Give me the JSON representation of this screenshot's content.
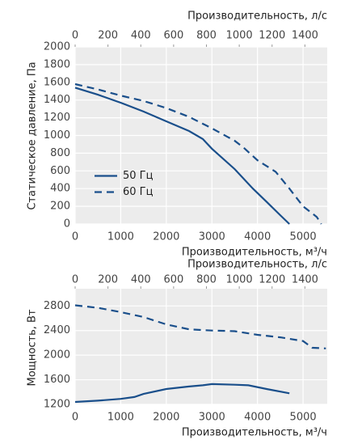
{
  "chart_data": [
    {
      "type": "line",
      "xlabel": "Производительность, м³/ч",
      "x2label": "Производительность, л/с",
      "ylabel": "Статическое давление, Па",
      "xlim": [
        0,
        5530
      ],
      "xticks": [
        0,
        1000,
        2000,
        3000,
        4000,
        5000
      ],
      "x2lim": [
        0,
        1536
      ],
      "x2ticks": [
        0,
        200,
        400,
        600,
        800,
        1000,
        1200,
        1400
      ],
      "ylim": [
        0,
        2000
      ],
      "yticks": [
        0,
        200,
        400,
        600,
        800,
        1000,
        1200,
        1400,
        1600,
        1800,
        2000
      ],
      "grid": true,
      "legend": "center left",
      "series": [
        {
          "name": "50 Гц",
          "color": "#1a4f8b",
          "linestyle": "solid",
          "x": [
            0,
            500,
            1000,
            1500,
            2000,
            2500,
            2800,
            3000,
            3500,
            3900,
            4200,
            4500,
            4700
          ],
          "values": [
            1540,
            1460,
            1370,
            1270,
            1160,
            1050,
            960,
            850,
            620,
            400,
            250,
            100,
            0
          ]
        },
        {
          "name": "60 Гц",
          "color": "#1a4f8b",
          "linestyle": "dashed",
          "x": [
            0,
            500,
            1000,
            1500,
            2000,
            2500,
            3000,
            3500,
            3700,
            4000,
            4400,
            4700,
            5000,
            5300,
            5400
          ],
          "values": [
            1580,
            1520,
            1450,
            1390,
            1310,
            1210,
            1080,
            940,
            860,
            720,
            590,
            400,
            200,
            80,
            0
          ]
        }
      ]
    },
    {
      "type": "line",
      "xlabel": "Производительность, м³/ч",
      "x2label": "Производительность, л/с",
      "ylabel": "Мощность, Вт",
      "xlim": [
        0,
        5530
      ],
      "xticks": [
        0,
        1000,
        2000,
        3000,
        4000,
        5000
      ],
      "x2lim": [
        0,
        1536
      ],
      "x2ticks": [
        0,
        200,
        400,
        600,
        800,
        1000,
        1200,
        1400
      ],
      "ylim": [
        1200,
        3080
      ],
      "yticks": [
        1200,
        1600,
        2000,
        2400,
        2800
      ],
      "grid": true,
      "series": [
        {
          "name": "50 Гц",
          "color": "#1a4f8b",
          "linestyle": "solid",
          "x": [
            0,
            500,
            1000,
            1300,
            1500,
            2000,
            2500,
            2800,
            3000,
            3500,
            3800,
            4200,
            4700
          ],
          "values": [
            1240,
            1260,
            1290,
            1320,
            1370,
            1450,
            1490,
            1510,
            1530,
            1520,
            1510,
            1450,
            1380
          ]
        },
        {
          "name": "60 Гц",
          "color": "#1a4f8b",
          "linestyle": "dashed",
          "x": [
            0,
            500,
            1000,
            1500,
            2000,
            2500,
            3000,
            3500,
            4000,
            4500,
            5000,
            5200,
            5500
          ],
          "values": [
            2810,
            2770,
            2700,
            2620,
            2500,
            2420,
            2400,
            2390,
            2330,
            2290,
            2230,
            2120,
            2110
          ]
        }
      ]
    }
  ]
}
